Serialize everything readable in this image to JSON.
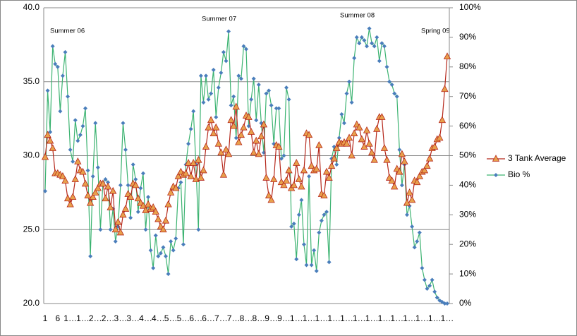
{
  "chart_data": {
    "type": "line",
    "annotations": [
      "Summer 06",
      "Summer 07",
      "Summer 08",
      "Spring 09"
    ],
    "categories": [
      "1",
      null,
      null,
      null,
      null,
      "6",
      null,
      null,
      null,
      null,
      "1…",
      null,
      null,
      null,
      null,
      "1…",
      null,
      null,
      null,
      null,
      "2…",
      null,
      null,
      null,
      null,
      "2…",
      null,
      null,
      null,
      null,
      "3…",
      null,
      null,
      null,
      null,
      "3…",
      null,
      null,
      null,
      null,
      "4…",
      null,
      null,
      null,
      null,
      "4…",
      null,
      null,
      null,
      null,
      "5…",
      null,
      null,
      null,
      null,
      "5…",
      null,
      null,
      null,
      null,
      "6…",
      null,
      null,
      null,
      null,
      "6…",
      null,
      null,
      null,
      null,
      "7…",
      null,
      null,
      null,
      null,
      "7…",
      null,
      null,
      null,
      null,
      "8…",
      null,
      null,
      null,
      null,
      "8…",
      null,
      null,
      null,
      null,
      "9…",
      null,
      null,
      null,
      null,
      "9…",
      null,
      null,
      null,
      null,
      "1…",
      null,
      null,
      null,
      null,
      "1…",
      null,
      null,
      null,
      null,
      "1…",
      null,
      null,
      null,
      null,
      "1…",
      null,
      null,
      null,
      null,
      "1…",
      null,
      null,
      null,
      null,
      "1…",
      null,
      null,
      null,
      null,
      "1…",
      null,
      null,
      null,
      null,
      "1…",
      null,
      null,
      null,
      null,
      "1…",
      null,
      null,
      null,
      null,
      "1…",
      null,
      null,
      null,
      null,
      "1…",
      null,
      null,
      null,
      null,
      "1…",
      null,
      null,
      null,
      null,
      "1…"
    ],
    "series": [
      {
        "name": "3 Tank Average",
        "color": "#b5271b",
        "marker_color": "#e8a04c",
        "marker": "triangle",
        "values": [
          29.9,
          31.4,
          31.0,
          30.5,
          28.8,
          28.8,
          28.7,
          28.6,
          28.3,
          27.1,
          26.7,
          27.2,
          28.4,
          29.6,
          29.0,
          28.9,
          28.1,
          27.3,
          26.8,
          27.2,
          27.5,
          27.8,
          28.1,
          28.1,
          27.1,
          27.9,
          26.5,
          27.6,
          25.0,
          25.5,
          24.8,
          26.0,
          26.4,
          27.4,
          27.2,
          28.1,
          28.0,
          27.1,
          26.8,
          26.6,
          26.3,
          26.7,
          26.4,
          26.5,
          26.2,
          25.7,
          25.2,
          25.0,
          25.6,
          26.7,
          27.5,
          27.9,
          27.8,
          28.6,
          28.9,
          28.7,
          28.8,
          29.5,
          28.6,
          29.5,
          28.4,
          29.7,
          28.5,
          29.0,
          30.6,
          31.9,
          32.4,
          31.5,
          31.9,
          30.8,
          30.2,
          28.7,
          30.4,
          30.1,
          32.4,
          32.0,
          33.3,
          30.9,
          31.4,
          31.9,
          32.7,
          32.6,
          31.6,
          30.2,
          31.0,
          30.1,
          31.3,
          32.1,
          28.5,
          27.3,
          27.0,
          28.4,
          30.7,
          30.6,
          28.2,
          28.0,
          28.3,
          29.0,
          27.8,
          28.0,
          29.5,
          28.4,
          27.9,
          29.0,
          31.5,
          31.4,
          29.3,
          29.0,
          29.1,
          30.7,
          27.4,
          27.3,
          28.9,
          28.5,
          29.3,
          29.8,
          30.5,
          30.9,
          30.8,
          30.9,
          30.8,
          31.2,
          30.0,
          31.5,
          32.1,
          31.9,
          31.1,
          30.6,
          31.7,
          30.8,
          30.2,
          29.7,
          31.8,
          32.6,
          32.6,
          30.5,
          29.7,
          28.5,
          28.3,
          27.9,
          29.1,
          28.9,
          30.1,
          29.6,
          26.8,
          27.5,
          27.0,
          28.3,
          28.2,
          28.6,
          28.9,
          29.0,
          29.3,
          29.8,
          30.5,
          30.6,
          31.1,
          31.2,
          32.4,
          34.5,
          36.7
        ]
      },
      {
        "name": "Bio %",
        "color": "#3cb371",
        "marker_color": "#4a7ebb",
        "marker": "diamond",
        "axis": "y2",
        "values": [
          38,
          72,
          58,
          87,
          81,
          80,
          65,
          77,
          85,
          70,
          52,
          48,
          62,
          55,
          57,
          60,
          66,
          45,
          16,
          43,
          61,
          46,
          25,
          41,
          42,
          41,
          25,
          32,
          21,
          26,
          40,
          61,
          52,
          40,
          29,
          47,
          42,
          31,
          39,
          44,
          25,
          36,
          18,
          12,
          23,
          16,
          17,
          19,
          16,
          10,
          21,
          18,
          22,
          39,
          41,
          20,
          47,
          54,
          59,
          65,
          47,
          25,
          77,
          68,
          77,
          69,
          71,
          79,
          63,
          73,
          78,
          85,
          82,
          92,
          67,
          70,
          56,
          77,
          76,
          87,
          86,
          60,
          69,
          76,
          62,
          74,
          61,
          51,
          71,
          72,
          67,
          54,
          66,
          66,
          49,
          50,
          73,
          69,
          26,
          27,
          15,
          30,
          35,
          20,
          13,
          43,
          13,
          18,
          11,
          24,
          28,
          30,
          31,
          14,
          49,
          53,
          47,
          56,
          64,
          61,
          71,
          75,
          68,
          83,
          90,
          88,
          90,
          89,
          87,
          93,
          88,
          87,
          90,
          82,
          88,
          87,
          80,
          75,
          74,
          71,
          70,
          52,
          40,
          47,
          30,
          33,
          26,
          19,
          21,
          24,
          12,
          8,
          5,
          6,
          8,
          4,
          2,
          1,
          0.5,
          0,
          0
        ]
      }
    ],
    "ylim": [
      20,
      40
    ],
    "yticks": [
      {
        "value": 20,
        "label": "20.0"
      },
      {
        "value": 25,
        "label": "25.0"
      },
      {
        "value": 30,
        "label": "30.0"
      },
      {
        "value": 35,
        "label": "35.0"
      },
      {
        "value": 40,
        "label": "40.0"
      }
    ],
    "y2lim": [
      0,
      100
    ],
    "y2ticks": [
      {
        "value": 0,
        "label": "0%"
      },
      {
        "value": 10,
        "label": "10%"
      },
      {
        "value": 20,
        "label": "20%"
      },
      {
        "value": 30,
        "label": "30%"
      },
      {
        "value": 40,
        "label": "40%"
      },
      {
        "value": 50,
        "label": "50%"
      },
      {
        "value": 60,
        "label": "60%"
      },
      {
        "value": 70,
        "label": "70%"
      },
      {
        "value": 80,
        "label": "80%"
      },
      {
        "value": 90,
        "label": "90%"
      },
      {
        "value": 100,
        "label": "100%"
      }
    ],
    "grid": true,
    "legend": "right"
  }
}
